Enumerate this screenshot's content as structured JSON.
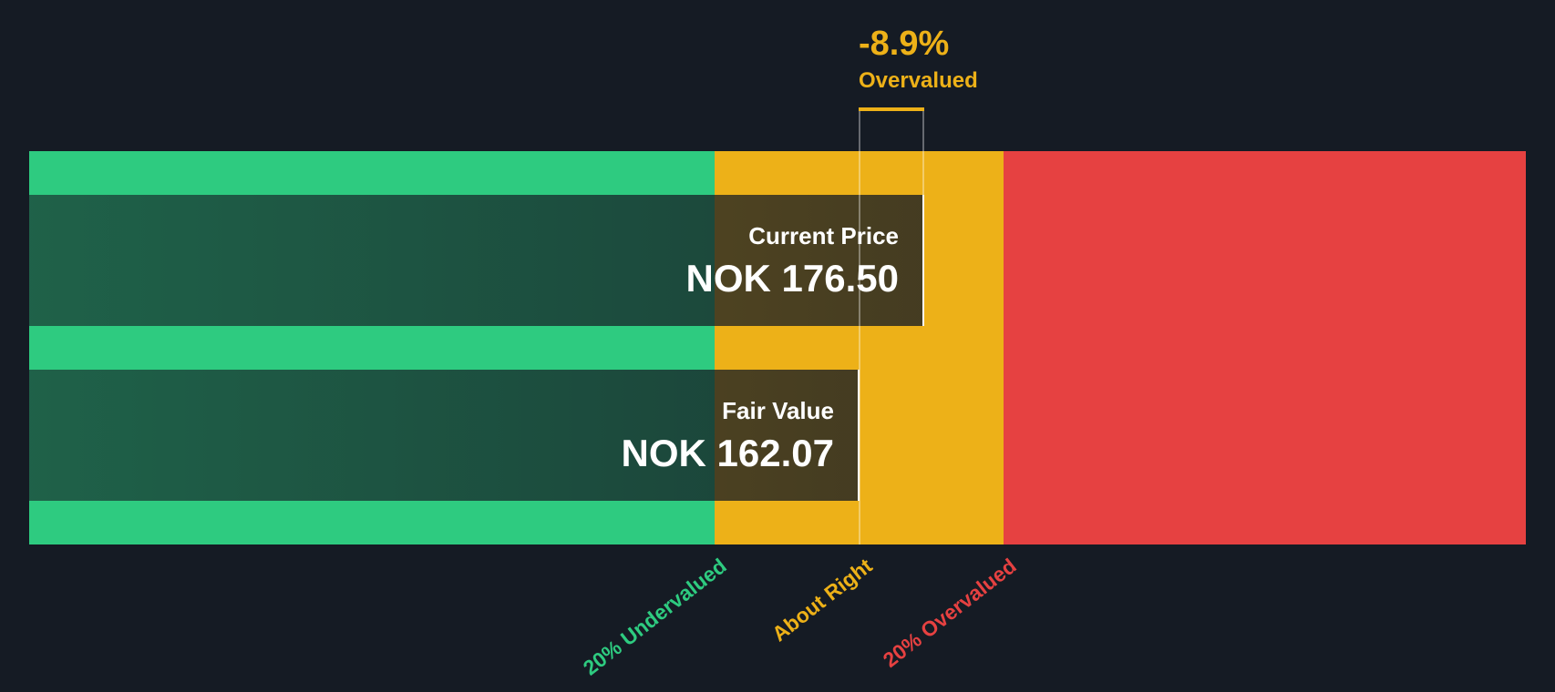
{
  "headline": {
    "percent": "-8.9%",
    "status": "Overvalued",
    "color": "#edb118"
  },
  "bars": {
    "current": {
      "title": "Current Price",
      "value": "NOK 176.50"
    },
    "fair": {
      "title": "Fair Value",
      "value": "NOK 162.07"
    }
  },
  "zones": {
    "undervalued": {
      "label": "20% Undervalued",
      "color": "#2ecb80"
    },
    "about_right": {
      "label": "About Right",
      "color": "#edb118"
    },
    "overvalued": {
      "label": "20% Overvalued",
      "color": "#e64141"
    }
  },
  "colors": {
    "background": "#151b24"
  },
  "chart_data": {
    "type": "bar",
    "orientation": "horizontal",
    "categories": [
      "Current Price",
      "Fair Value"
    ],
    "values": [
      176.5,
      162.07
    ],
    "currency": "NOK",
    "difference_percent": -8.9,
    "verdict": "Overvalued",
    "zones": [
      {
        "name": "20% Undervalued",
        "color": "#2ecb80"
      },
      {
        "name": "About Right",
        "color": "#edb118"
      },
      {
        "name": "20% Overvalued",
        "color": "#e64141"
      }
    ],
    "title": "",
    "xlabel": "",
    "ylabel": "",
    "grid": false
  }
}
